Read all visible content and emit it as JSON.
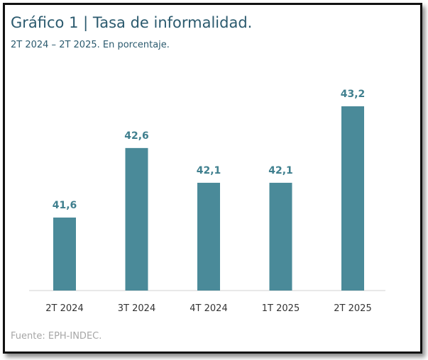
{
  "header": {
    "title": "Gráfico 1 | Tasa de informalidad.",
    "subtitle": "2T 2024 – 2T 2025. En porcentaje."
  },
  "footer": {
    "source": "Fuente: EPH-INDEC."
  },
  "colors": {
    "bar": "#4a8a99",
    "value_label": "#3f7f8e",
    "title": "#2b5a6e",
    "axis": "#d0d0d0"
  },
  "chart_data": {
    "type": "bar",
    "categories": [
      "2T 2024",
      "3T 2024",
      "4T 2024",
      "1T 2025",
      "2T 2025"
    ],
    "values": [
      41.6,
      42.6,
      42.1,
      42.1,
      43.2
    ],
    "value_labels": [
      "41,6",
      "42,6",
      "42,1",
      "42,1",
      "43,2"
    ],
    "ylim": [
      40.55,
      43.2
    ],
    "grid": false,
    "legend": "none"
  }
}
